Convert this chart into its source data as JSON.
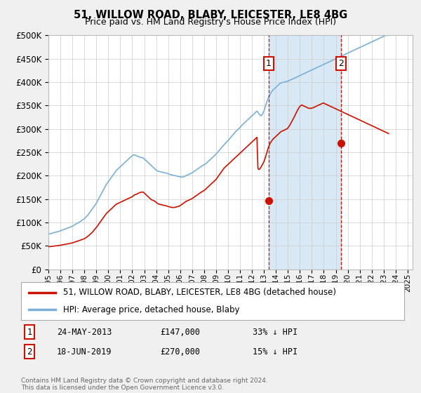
{
  "title": "51, WILLOW ROAD, BLABY, LEICESTER, LE8 4BG",
  "subtitle": "Price paid vs. HM Land Registry's House Price Index (HPI)",
  "ytick_values": [
    0,
    50000,
    100000,
    150000,
    200000,
    250000,
    300000,
    350000,
    400000,
    450000,
    500000
  ],
  "hpi_color": "#7ab0d8",
  "sale_color": "#cc1100",
  "sale1_date_num": [
    2013,
    5,
    24
  ],
  "sale1_price": 147000,
  "sale2_date_num": [
    2019,
    6,
    18
  ],
  "sale2_price": 270000,
  "vline_color": "#cc1100",
  "shaded_region_color": "#d8e8f5",
  "legend_label_sale": "51, WILLOW ROAD, BLABY, LEICESTER, LE8 4BG (detached house)",
  "legend_label_hpi": "HPI: Average price, detached house, Blaby",
  "annotation1_label": "1",
  "annotation1_date": "24-MAY-2013",
  "annotation1_price": "£147,000",
  "annotation1_pct": "33% ↓ HPI",
  "annotation2_label": "2",
  "annotation2_date": "18-JUN-2019",
  "annotation2_price": "£270,000",
  "annotation2_pct": "15% ↓ HPI",
  "footer": "Contains HM Land Registry data © Crown copyright and database right 2024.\nThis data is licensed under the Open Government Licence v3.0.",
  "background_color": "#f0f0f0",
  "plot_bg_color": "#ffffff",
  "hpi_monthly": [
    75000,
    75500,
    76000,
    76500,
    77200,
    77800,
    78300,
    78900,
    79500,
    80100,
    80700,
    81200,
    82000,
    82800,
    83500,
    84300,
    85200,
    86100,
    87000,
    87800,
    88600,
    89400,
    90200,
    91000,
    92000,
    93200,
    94500,
    95800,
    97000,
    98200,
    99500,
    100800,
    102000,
    103500,
    105000,
    106500,
    108000,
    110000,
    112000,
    114500,
    117000,
    120000,
    123000,
    126000,
    129000,
    132000,
    135000,
    138000,
    141000,
    145000,
    149000,
    153000,
    157000,
    161000,
    165000,
    169000,
    173000,
    177000,
    181000,
    184000,
    187000,
    190000,
    193000,
    196000,
    199000,
    202000,
    205000,
    208000,
    211000,
    213000,
    215000,
    217000,
    219000,
    221000,
    223000,
    225000,
    227000,
    229000,
    231000,
    233000,
    235000,
    237000,
    239000,
    241000,
    243000,
    244000,
    244500,
    244000,
    243000,
    242000,
    241000,
    240000,
    239500,
    239000,
    238500,
    238000,
    236000,
    234000,
    232000,
    230000,
    228000,
    226000,
    224000,
    222000,
    220000,
    218000,
    216000,
    214000,
    212000,
    210500,
    209500,
    209000,
    208500,
    208000,
    207500,
    207000,
    206500,
    206000,
    205500,
    205000,
    204000,
    203000,
    202500,
    202000,
    201500,
    201000,
    200500,
    200000,
    199500,
    199000,
    198500,
    198000,
    197500,
    197000,
    197000,
    197500,
    198000,
    199000,
    200000,
    201000,
    202000,
    203000,
    204000,
    205000,
    206000,
    207500,
    209000,
    210500,
    212000,
    213500,
    215000,
    216500,
    218000,
    219500,
    221000,
    222000,
    223000,
    224500,
    226000,
    228000,
    230000,
    232000,
    234000,
    236000,
    238000,
    240000,
    242000,
    244000,
    246000,
    248500,
    251000,
    253500,
    256000,
    258500,
    261000,
    263500,
    266000,
    268500,
    271000,
    273000,
    275000,
    277500,
    280000,
    282500,
    285000,
    287500,
    290000,
    292500,
    295000,
    297000,
    299000,
    301000,
    303000,
    305500,
    308000,
    310000,
    312000,
    314000,
    316000,
    318000,
    320000,
    322000,
    324000,
    326000,
    328000,
    330000,
    332000,
    334000,
    336000,
    338000,
    336000,
    332000,
    330000,
    328000,
    330000,
    334000,
    338000,
    345000,
    352000,
    358000,
    364000,
    369000,
    373000,
    377000,
    380000,
    383000,
    385000,
    387000,
    389000,
    391000,
    393000,
    395000,
    397000,
    398000,
    399000,
    399500,
    400000,
    400500,
    401000,
    401500,
    402000,
    403000,
    404000,
    405000,
    406000,
    407000,
    408000,
    409000,
    410000,
    411000,
    412000,
    413000,
    414000,
    415000,
    416000,
    417000,
    418000,
    419000,
    420000,
    421000,
    422000,
    423000,
    424000,
    425000,
    426000,
    427000,
    428000,
    429000,
    430000,
    431000,
    432000,
    433000,
    434000,
    435000,
    436000,
    437000,
    438000,
    439000,
    440000,
    441000,
    442000,
    443000,
    444000,
    445000,
    446000,
    447000,
    448000,
    449000,
    450000,
    451000,
    452000,
    453000,
    454000,
    455000,
    456000,
    457000,
    458000,
    459000,
    460000,
    461000,
    462000,
    463000,
    464000,
    465000,
    466000,
    467000,
    468000,
    469000,
    470000,
    471000,
    472000,
    473000,
    474000,
    475000,
    476000,
    477000,
    478000,
    479000,
    480000,
    481000,
    482000,
    483000,
    484000,
    485000,
    486000,
    487000,
    488000,
    489000,
    490000,
    491000,
    492000,
    493000,
    494000,
    495000,
    496000,
    497000,
    498000,
    499000,
    500000,
    500000,
    500000,
    500000
  ],
  "sale_monthly": [
    48000,
    48200,
    48500,
    48700,
    49000,
    49200,
    49500,
    49800,
    50000,
    50300,
    50500,
    50800,
    51200,
    51600,
    52000,
    52400,
    52800,
    53200,
    53700,
    54100,
    54500,
    55000,
    55400,
    55800,
    56300,
    57000,
    57700,
    58400,
    59100,
    59800,
    60500,
    61300,
    62000,
    62800,
    63500,
    64300,
    65200,
    66500,
    68000,
    69500,
    71000,
    73000,
    75000,
    77000,
    79000,
    81500,
    84000,
    86500,
    89000,
    92000,
    95000,
    98000,
    101000,
    104000,
    107000,
    110000,
    113000,
    116000,
    119000,
    121000,
    123000,
    125000,
    127000,
    129000,
    131000,
    133000,
    135000,
    137000,
    139000,
    140000,
    141000,
    142000,
    143000,
    144000,
    145000,
    146000,
    147000,
    148000,
    149000,
    150000,
    151000,
    152000,
    153000,
    154000,
    155000,
    157000,
    158500,
    159500,
    160000,
    161000,
    162000,
    163500,
    164000,
    164500,
    165000,
    165000,
    163000,
    161000,
    159000,
    157000,
    155000,
    153000,
    151000,
    149000,
    148000,
    147000,
    146000,
    145000,
    143000,
    141000,
    140000,
    139000,
    138500,
    138000,
    137500,
    137000,
    136500,
    136000,
    135500,
    135000,
    134000,
    133500,
    133000,
    132500,
    132000,
    132000,
    132000,
    132500,
    133000,
    133500,
    134000,
    135000,
    136000,
    137500,
    139000,
    140500,
    142000,
    143500,
    145000,
    146000,
    147000,
    148000,
    149000,
    150000,
    151000,
    152500,
    154000,
    155500,
    157000,
    158500,
    160000,
    161500,
    163000,
    164500,
    166000,
    167000,
    168500,
    170000,
    172000,
    174000,
    176000,
    178000,
    180000,
    182000,
    184000,
    186000,
    188000,
    190000,
    192000,
    195000,
    198000,
    201000,
    204000,
    207000,
    210000,
    213000,
    216000,
    218000,
    220000,
    222000,
    224000,
    226000,
    228000,
    230000,
    232000,
    234000,
    236000,
    238000,
    240000,
    242000,
    244000,
    246000,
    248000,
    250000,
    252000,
    254000,
    256000,
    258000,
    260000,
    262000,
    264000,
    266000,
    268000,
    270000,
    272000,
    274000,
    276000,
    278000,
    280000,
    282000,
    216000,
    213000,
    215000,
    218000,
    222000,
    226000,
    230000,
    236000,
    243000,
    250000,
    257000,
    263000,
    268000,
    272000,
    275000,
    278000,
    280000,
    282000,
    284000,
    286000,
    288000,
    290000,
    292000,
    294000,
    295000,
    296000,
    297000,
    298000,
    299000,
    300000,
    302000,
    305000,
    308000,
    312000,
    316000,
    320000,
    324000,
    328000,
    333000,
    337000,
    341000,
    345000,
    348000,
    350000,
    351000,
    350000,
    349000,
    348000,
    347000,
    346000,
    345000,
    344000,
    344000,
    344000,
    344500,
    345000,
    346000,
    347000,
    348000,
    349000,
    350000,
    351000,
    352000,
    353000,
    354000,
    355000,
    355000,
    354000,
    353000,
    352000,
    351000,
    350000,
    349000,
    348000,
    347000,
    346000,
    345000,
    344000,
    343000,
    342000,
    341000,
    340000,
    339000,
    338000,
    337000,
    336000,
    335000,
    334000,
    333000,
    332000,
    331000,
    330000,
    329000,
    328000,
    327000,
    326000,
    325000,
    324000,
    323000,
    322000,
    321000,
    320000,
    319000,
    318000,
    317000,
    316000,
    315000,
    314000,
    313000,
    312000,
    311000,
    310000,
    309000,
    308000,
    307000,
    306000,
    305000,
    304000,
    303000,
    302000,
    301000,
    300000,
    299000,
    298000,
    297000,
    296000,
    295000,
    294000,
    293000,
    292000,
    291000,
    290000
  ]
}
